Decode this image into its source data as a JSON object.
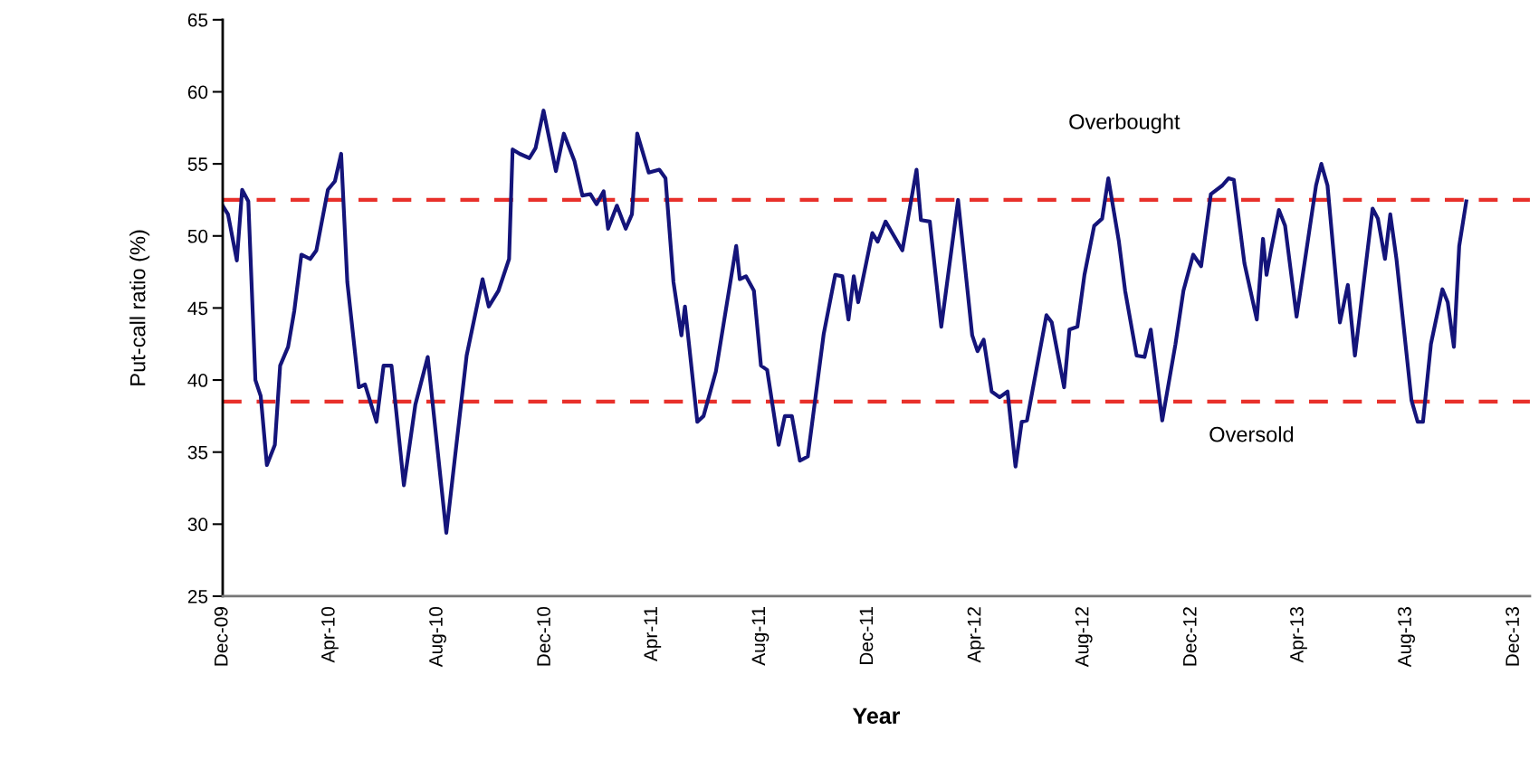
{
  "chart_data": {
    "type": "line",
    "xlabel": "Year",
    "ylabel": "Put-call ratio (%)",
    "x": [
      "2009-12-01",
      "2009-12-07",
      "2009-12-17",
      "2009-12-23",
      "2009-12-30",
      "2010-01-07",
      "2010-01-13",
      "2010-01-20",
      "2010-01-29",
      "2010-02-04",
      "2010-02-13",
      "2010-02-20",
      "2010-02-28",
      "2010-03-10",
      "2010-03-17",
      "2010-03-30",
      "2010-04-07",
      "2010-04-14",
      "2010-04-21",
      "2010-05-04",
      "2010-05-11",
      "2010-05-24",
      "2010-06-01",
      "2010-06-10",
      "2010-06-24",
      "2010-07-07",
      "2010-07-21",
      "2010-08-11",
      "2010-09-03",
      "2010-09-21",
      "2010-09-28",
      "2010-10-09",
      "2010-10-21",
      "2010-10-25",
      "2010-11-02",
      "2010-11-13",
      "2010-11-20",
      "2010-11-29",
      "2010-12-13",
      "2010-12-22",
      "2011-01-03",
      "2011-01-12",
      "2011-01-21",
      "2011-01-28",
      "2011-02-05",
      "2011-02-10",
      "2011-02-20",
      "2011-03-02",
      "2011-03-09",
      "2011-03-15",
      "2011-03-28",
      "2011-04-09",
      "2011-04-16",
      "2011-04-25",
      "2011-05-04",
      "2011-05-08",
      "2011-05-22",
      "2011-05-29",
      "2011-06-12",
      "2011-07-05",
      "2011-07-09",
      "2011-07-16",
      "2011-07-25",
      "2011-08-02",
      "2011-08-09",
      "2011-08-22",
      "2011-08-29",
      "2011-09-06",
      "2011-09-15",
      "2011-09-24",
      "2011-10-12",
      "2011-10-25",
      "2011-11-02",
      "2011-11-09",
      "2011-11-15",
      "2011-11-20",
      "2011-12-06",
      "2011-12-12",
      "2011-12-21",
      "2012-01-09",
      "2012-01-25",
      "2012-01-30",
      "2012-02-09",
      "2012-02-22",
      "2012-03-12",
      "2012-03-28",
      "2012-04-03",
      "2012-04-10",
      "2012-04-19",
      "2012-04-28",
      "2012-05-07",
      "2012-05-16",
      "2012-05-23",
      "2012-05-29",
      "2012-06-20",
      "2012-06-26",
      "2012-07-10",
      "2012-07-16",
      "2012-07-25",
      "2012-08-02",
      "2012-08-13",
      "2012-08-22",
      "2012-08-29",
      "2012-09-10",
      "2012-09-17",
      "2012-09-30",
      "2012-10-09",
      "2012-10-16",
      "2012-10-29",
      "2012-11-13",
      "2012-11-22",
      "2012-12-03",
      "2012-12-12",
      "2012-12-23",
      "2013-01-05",
      "2013-01-12",
      "2013-01-18",
      "2013-01-30",
      "2013-02-13",
      "2013-02-20",
      "2013-02-24",
      "2013-03-01",
      "2013-03-10",
      "2013-03-17",
      "2013-03-30",
      "2013-04-21",
      "2013-04-27",
      "2013-05-04",
      "2013-05-18",
      "2013-05-27",
      "2013-06-04",
      "2013-06-24",
      "2013-06-30",
      "2013-07-08",
      "2013-07-14",
      "2013-07-21",
      "2013-08-07",
      "2013-08-14",
      "2013-08-20",
      "2013-08-29",
      "2013-09-11",
      "2013-09-17",
      "2013-09-24",
      "2013-09-30",
      "2013-10-08"
    ],
    "series": [
      {
        "color": "#14147a",
        "values": [
          52.1,
          51.5,
          48.3,
          53.2,
          52.4,
          40.0,
          38.9,
          34.1,
          35.5,
          41.0,
          42.3,
          44.8,
          48.7,
          48.4,
          49.0,
          53.2,
          53.8,
          55.7,
          46.8,
          39.5,
          39.7,
          37.1,
          41.0,
          41.0,
          32.7,
          38.3,
          41.6,
          29.4,
          41.7,
          47.0,
          45.1,
          46.2,
          48.4,
          56.0,
          55.7,
          55.4,
          56.1,
          58.7,
          54.5,
          57.1,
          55.2,
          52.8,
          52.9,
          52.2,
          53.1,
          50.5,
          52.1,
          50.5,
          51.5,
          57.1,
          54.4,
          54.6,
          54.0,
          46.8,
          43.1,
          45.1,
          37.1,
          37.5,
          40.6,
          49.3,
          47.0,
          47.2,
          46.2,
          41.0,
          40.7,
          35.5,
          37.5,
          37.5,
          34.4,
          34.7,
          43.2,
          47.3,
          47.2,
          44.2,
          47.2,
          45.4,
          50.2,
          49.6,
          51.0,
          49.0,
          54.6,
          51.1,
          51.0,
          43.7,
          52.5,
          43.1,
          42.0,
          42.8,
          39.2,
          38.8,
          39.2,
          34.0,
          37.1,
          37.2,
          44.5,
          44.0,
          39.5,
          43.5,
          43.7,
          47.3,
          50.7,
          51.2,
          54.0,
          49.6,
          46.2,
          41.7,
          41.6,
          43.5,
          37.2,
          42.5,
          46.2,
          48.7,
          47.9,
          52.9,
          53.5,
          54.0,
          53.9,
          48.1,
          44.2,
          49.8,
          47.3,
          49.0,
          51.8,
          50.7,
          44.4,
          53.5,
          55.0,
          53.5,
          44.0,
          46.6,
          41.7,
          51.9,
          51.2,
          48.4,
          51.5,
          48.4,
          38.6,
          37.1,
          37.1,
          42.5,
          46.3,
          45.4,
          42.3,
          49.3,
          52.4
        ]
      }
    ],
    "xlim": [
      "2009-12-01",
      "2013-12-19"
    ],
    "xticks": [
      {
        "value": "2009-12-01",
        "label": "Dec-09"
      },
      {
        "value": "2010-04-01",
        "label": "Apr-10"
      },
      {
        "value": "2010-08-01",
        "label": "Aug-10"
      },
      {
        "value": "2010-12-01",
        "label": "Dec-10"
      },
      {
        "value": "2011-04-01",
        "label": "Apr-11"
      },
      {
        "value": "2011-08-01",
        "label": "Aug-11"
      },
      {
        "value": "2011-12-01",
        "label": "Dec-11"
      },
      {
        "value": "2012-04-01",
        "label": "Apr-12"
      },
      {
        "value": "2012-08-01",
        "label": "Aug-12"
      },
      {
        "value": "2012-12-01",
        "label": "Dec-12"
      },
      {
        "value": "2013-04-01",
        "label": "Apr-13"
      },
      {
        "value": "2013-08-01",
        "label": "Aug-13"
      },
      {
        "value": "2013-12-01",
        "label": "Dec-13"
      }
    ],
    "ylim": [
      25,
      65
    ],
    "yticks": [
      25,
      30,
      35,
      40,
      45,
      50,
      55,
      60,
      65
    ],
    "ref_lines": [
      {
        "axis": "y",
        "value": 52.5,
        "color": "#e8302a",
        "line_style": "dashed"
      },
      {
        "axis": "y",
        "value": 38.5,
        "color": "#e8302a",
        "line_style": "dashed"
      }
    ],
    "annotations": [
      "Overbought",
      "Oversold"
    ],
    "grid": false,
    "legend": false,
    "marker": "none",
    "line_style": "solid"
  }
}
